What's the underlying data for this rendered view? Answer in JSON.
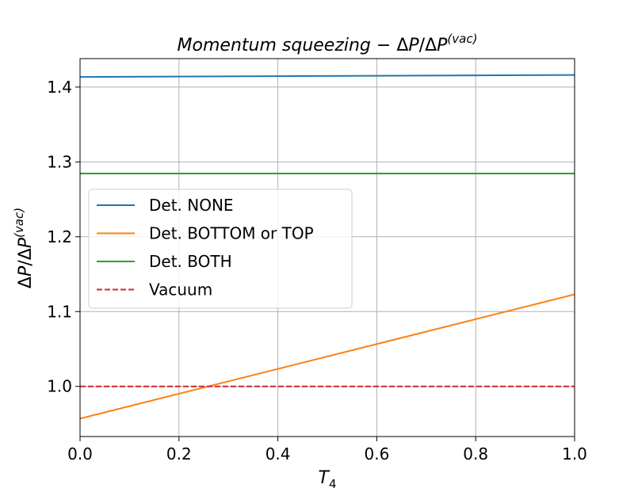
{
  "chart_data": {
    "type": "line",
    "title": {
      "main": "Momentum squeezing",
      "sep": " − ",
      "delta": "Δ",
      "p": "P",
      "slash": "/Δ",
      "p2": "P",
      "sup": "(vac)"
    },
    "xlabel": {
      "base": "T",
      "sub": "4"
    },
    "ylabel": {
      "delta": "Δ",
      "p": "P",
      "slash": "/Δ",
      "p2": "P",
      "sup": "(vac)"
    },
    "xlim": [
      0.0,
      1.0
    ],
    "ylim": [
      0.933,
      1.438
    ],
    "xticks": [
      "0.0",
      "0.2",
      "0.4",
      "0.6",
      "0.8",
      "1.0"
    ],
    "yticks": [
      "1.0",
      "1.1",
      "1.2",
      "1.3",
      "1.4"
    ],
    "grid": true,
    "legend_position": "center-left",
    "series": [
      {
        "name": "Det. NONE",
        "color": "#1f77b4",
        "style": "solid",
        "x": [
          0.0,
          1.0
        ],
        "y": [
          1.4135,
          1.4162
        ]
      },
      {
        "name": "Det. BOTTOM or TOP",
        "color": "#ff7f0e",
        "style": "solid",
        "x": [
          0.0,
          1.0
        ],
        "y": [
          0.957,
          1.123
        ]
      },
      {
        "name": "Det. BOTH",
        "color": "#2ca02c",
        "style": "solid",
        "x": [
          0.0,
          1.0
        ],
        "y": [
          1.2845,
          1.2845
        ]
      },
      {
        "name": "Vacuum",
        "color": "#d62728",
        "style": "dashed",
        "x": [
          0.0,
          1.0
        ],
        "y": [
          1.0,
          1.0
        ]
      }
    ]
  }
}
